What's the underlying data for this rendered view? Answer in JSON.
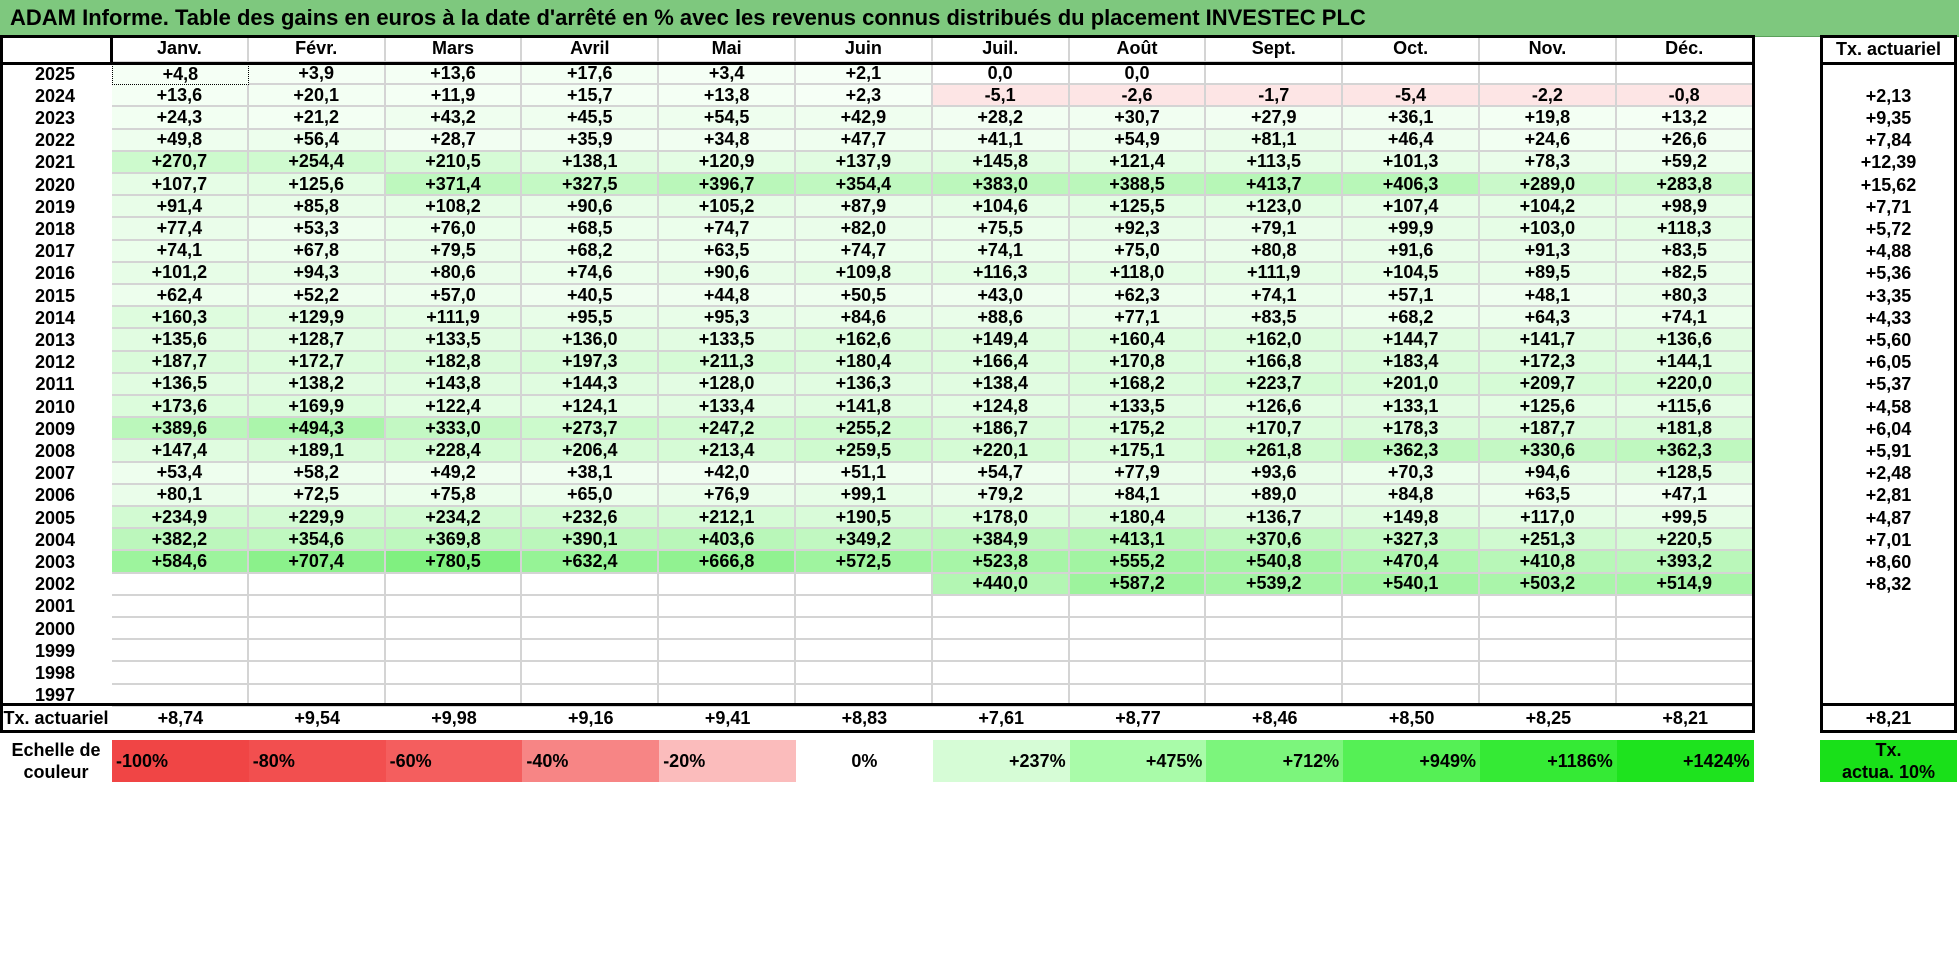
{
  "title": "ADAM Informe. Table des gains en euros à la date d'arrêté en % avec les revenus connus distribués du placement INVESTEC PLC",
  "months": [
    "Janv.",
    "Févr.",
    "Mars",
    "Avril",
    "Mai",
    "Juin",
    "Juil.",
    "Août",
    "Sept.",
    "Oct.",
    "Nov.",
    "Déc."
  ],
  "tx_header": "Tx. actuariel",
  "rows": [
    {
      "year": "2025",
      "v": [
        "+4,8",
        "+3,9",
        "+13,6",
        "+17,6",
        "+3,4",
        "+2,1",
        "0,0",
        "0,0",
        "",
        "",
        "",
        ""
      ],
      "tx": ""
    },
    {
      "year": "2024",
      "v": [
        "+13,6",
        "+20,1",
        "+11,9",
        "+15,7",
        "+13,8",
        "+2,3",
        "-5,1",
        "-2,6",
        "-1,7",
        "-5,4",
        "-2,2",
        "-0,8"
      ],
      "tx": "+2,13"
    },
    {
      "year": "2023",
      "v": [
        "+24,3",
        "+21,2",
        "+43,2",
        "+45,5",
        "+54,5",
        "+42,9",
        "+28,2",
        "+30,7",
        "+27,9",
        "+36,1",
        "+19,8",
        "+13,2"
      ],
      "tx": "+9,35"
    },
    {
      "year": "2022",
      "v": [
        "+49,8",
        "+56,4",
        "+28,7",
        "+35,9",
        "+34,8",
        "+47,7",
        "+41,1",
        "+54,9",
        "+81,1",
        "+46,4",
        "+24,6",
        "+26,6"
      ],
      "tx": "+7,84"
    },
    {
      "year": "2021",
      "v": [
        "+270,7",
        "+254,4",
        "+210,5",
        "+138,1",
        "+120,9",
        "+137,9",
        "+145,8",
        "+121,4",
        "+113,5",
        "+101,3",
        "+78,3",
        "+59,2"
      ],
      "tx": "+12,39"
    },
    {
      "year": "2020",
      "v": [
        "+107,7",
        "+125,6",
        "+371,4",
        "+327,5",
        "+396,7",
        "+354,4",
        "+383,0",
        "+388,5",
        "+413,7",
        "+406,3",
        "+289,0",
        "+283,8"
      ],
      "tx": "+15,62"
    },
    {
      "year": "2019",
      "v": [
        "+91,4",
        "+85,8",
        "+108,2",
        "+90,6",
        "+105,2",
        "+87,9",
        "+104,6",
        "+125,5",
        "+123,0",
        "+107,4",
        "+104,2",
        "+98,9"
      ],
      "tx": "+7,71"
    },
    {
      "year": "2018",
      "v": [
        "+77,4",
        "+53,3",
        "+76,0",
        "+68,5",
        "+74,7",
        "+82,0",
        "+75,5",
        "+92,3",
        "+79,1",
        "+99,9",
        "+103,0",
        "+118,3"
      ],
      "tx": "+5,72"
    },
    {
      "year": "2017",
      "v": [
        "+74,1",
        "+67,8",
        "+79,5",
        "+68,2",
        "+63,5",
        "+74,7",
        "+74,1",
        "+75,0",
        "+80,8",
        "+91,6",
        "+91,3",
        "+83,5"
      ],
      "tx": "+4,88"
    },
    {
      "year": "2016",
      "v": [
        "+101,2",
        "+94,3",
        "+80,6",
        "+74,6",
        "+90,6",
        "+109,8",
        "+116,3",
        "+118,0",
        "+111,9",
        "+104,5",
        "+89,5",
        "+82,5"
      ],
      "tx": "+5,36"
    },
    {
      "year": "2015",
      "v": [
        "+62,4",
        "+52,2",
        "+57,0",
        "+40,5",
        "+44,8",
        "+50,5",
        "+43,0",
        "+62,3",
        "+74,1",
        "+57,1",
        "+48,1",
        "+80,3"
      ],
      "tx": "+3,35"
    },
    {
      "year": "2014",
      "v": [
        "+160,3",
        "+129,9",
        "+111,9",
        "+95,5",
        "+95,3",
        "+84,6",
        "+88,6",
        "+77,1",
        "+83,5",
        "+68,2",
        "+64,3",
        "+74,1"
      ],
      "tx": "+4,33"
    },
    {
      "year": "2013",
      "v": [
        "+135,6",
        "+128,7",
        "+133,5",
        "+136,0",
        "+133,5",
        "+162,6",
        "+149,4",
        "+160,4",
        "+162,0",
        "+144,7",
        "+141,7",
        "+136,6"
      ],
      "tx": "+5,60"
    },
    {
      "year": "2012",
      "v": [
        "+187,7",
        "+172,7",
        "+182,8",
        "+197,3",
        "+211,3",
        "+180,4",
        "+166,4",
        "+170,8",
        "+166,8",
        "+183,4",
        "+172,3",
        "+144,1"
      ],
      "tx": "+6,05"
    },
    {
      "year": "2011",
      "v": [
        "+136,5",
        "+138,2",
        "+143,8",
        "+144,3",
        "+128,0",
        "+136,3",
        "+138,4",
        "+168,2",
        "+223,7",
        "+201,0",
        "+209,7",
        "+220,0"
      ],
      "tx": "+5,37"
    },
    {
      "year": "2010",
      "v": [
        "+173,6",
        "+169,9",
        "+122,4",
        "+124,1",
        "+133,4",
        "+141,8",
        "+124,8",
        "+133,5",
        "+126,6",
        "+133,1",
        "+125,6",
        "+115,6"
      ],
      "tx": "+4,58"
    },
    {
      "year": "2009",
      "v": [
        "+389,6",
        "+494,3",
        "+333,0",
        "+273,7",
        "+247,2",
        "+255,2",
        "+186,7",
        "+175,2",
        "+170,7",
        "+178,3",
        "+187,7",
        "+181,8"
      ],
      "tx": "+6,04"
    },
    {
      "year": "2008",
      "v": [
        "+147,4",
        "+189,1",
        "+228,4",
        "+206,4",
        "+213,4",
        "+259,5",
        "+220,1",
        "+175,1",
        "+261,8",
        "+362,3",
        "+330,6",
        "+362,3"
      ],
      "tx": "+5,91"
    },
    {
      "year": "2007",
      "v": [
        "+53,4",
        "+58,2",
        "+49,2",
        "+38,1",
        "+42,0",
        "+51,1",
        "+54,7",
        "+77,9",
        "+93,6",
        "+70,3",
        "+94,6",
        "+128,5"
      ],
      "tx": "+2,48"
    },
    {
      "year": "2006",
      "v": [
        "+80,1",
        "+72,5",
        "+75,8",
        "+65,0",
        "+76,9",
        "+99,1",
        "+79,2",
        "+84,1",
        "+89,0",
        "+84,8",
        "+63,5",
        "+47,1"
      ],
      "tx": "+2,81"
    },
    {
      "year": "2005",
      "v": [
        "+234,9",
        "+229,9",
        "+234,2",
        "+232,6",
        "+212,1",
        "+190,5",
        "+178,0",
        "+180,4",
        "+136,7",
        "+149,8",
        "+117,0",
        "+99,5"
      ],
      "tx": "+4,87"
    },
    {
      "year": "2004",
      "v": [
        "+382,2",
        "+354,6",
        "+369,8",
        "+390,1",
        "+403,6",
        "+349,2",
        "+384,9",
        "+413,1",
        "+370,6",
        "+327,3",
        "+251,3",
        "+220,5"
      ],
      "tx": "+7,01"
    },
    {
      "year": "2003",
      "v": [
        "+584,6",
        "+707,4",
        "+780,5",
        "+632,4",
        "+666,8",
        "+572,5",
        "+523,8",
        "+555,2",
        "+540,8",
        "+470,4",
        "+410,8",
        "+393,2"
      ],
      "tx": "+8,60"
    },
    {
      "year": "2002",
      "v": [
        "",
        "",
        "",
        "",
        "",
        "",
        "+440,0",
        "+587,2",
        "+539,2",
        "+540,1",
        "+503,2",
        "+514,9"
      ],
      "tx": "+8,32"
    },
    {
      "year": "2001",
      "v": [
        "",
        "",
        "",
        "",
        "",
        "",
        "",
        "",
        "",
        "",
        "",
        ""
      ],
      "tx": ""
    },
    {
      "year": "2000",
      "v": [
        "",
        "",
        "",
        "",
        "",
        "",
        "",
        "",
        "",
        "",
        "",
        ""
      ],
      "tx": ""
    },
    {
      "year": "1999",
      "v": [
        "",
        "",
        "",
        "",
        "",
        "",
        "",
        "",
        "",
        "",
        "",
        ""
      ],
      "tx": ""
    },
    {
      "year": "1998",
      "v": [
        "",
        "",
        "",
        "",
        "",
        "",
        "",
        "",
        "",
        "",
        "",
        ""
      ],
      "tx": ""
    },
    {
      "year": "1997",
      "v": [
        "",
        "",
        "",
        "",
        "",
        "",
        "",
        "",
        "",
        "",
        "",
        ""
      ],
      "tx": ""
    }
  ],
  "footer": {
    "label": "Tx. actuariel",
    "values": [
      "+8,74",
      "+9,54",
      "+9,98",
      "+9,16",
      "+9,41",
      "+8,83",
      "+7,61",
      "+8,77",
      "+8,46",
      "+8,50",
      "+8,25",
      "+8,21"
    ],
    "tx": "+8,21"
  },
  "legend": {
    "label_line1": "Echelle de",
    "label_line2": "couleur",
    "items": [
      {
        "text": "-100%",
        "color": "#f04545"
      },
      {
        "text": "-80%",
        "color": "#f24f4f"
      },
      {
        "text": "-60%",
        "color": "#f45e5e"
      },
      {
        "text": "-40%",
        "color": "#f78585"
      },
      {
        "text": "-20%",
        "color": "#fbbcbc"
      },
      {
        "text": "0%",
        "color": "#ffffff"
      },
      {
        "text": "+237%",
        "color": "#d6fcd6"
      },
      {
        "text": "+475%",
        "color": "#a9fba9"
      },
      {
        "text": "+712%",
        "color": "#7cf57c"
      },
      {
        "text": "+949%",
        "color": "#55f055"
      },
      {
        "text": "+1186%",
        "color": "#35ea35"
      },
      {
        "text": "+1424%",
        "color": "#1ee31e"
      }
    ],
    "tx_line1": "Tx.",
    "tx_line2": "actua. 10%",
    "tx_color": "#19e019"
  },
  "colors": {
    "title_bg": "#7ec87e",
    "positive_max": "#1ee31e",
    "negative": "#fde5e5"
  }
}
